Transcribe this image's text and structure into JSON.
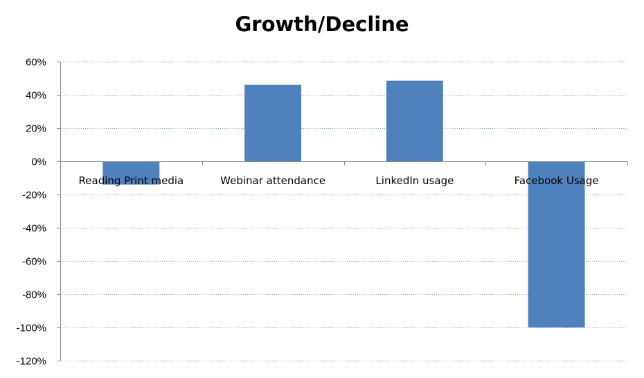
{
  "chart_data": {
    "type": "bar",
    "title": "Growth/Decline",
    "xlabel": "",
    "ylabel": "",
    "categories": [
      "Reading Print media",
      "Webinar attendance",
      "LinkedIn usage",
      "Facebook Usage"
    ],
    "values": [
      -14,
      46,
      48.5,
      -100
    ],
    "yticks": [
      "60%",
      "40%",
      "20%",
      "0%",
      "-20%",
      "-40%",
      "-60%",
      "-80%",
      "-100%",
      "-120%"
    ],
    "ylim": [
      -120,
      60
    ],
    "grid": true,
    "legend": "none",
    "bar_color": "#4F81BD",
    "grid_color": "#7F9FBF",
    "axis_color": "#868686"
  }
}
